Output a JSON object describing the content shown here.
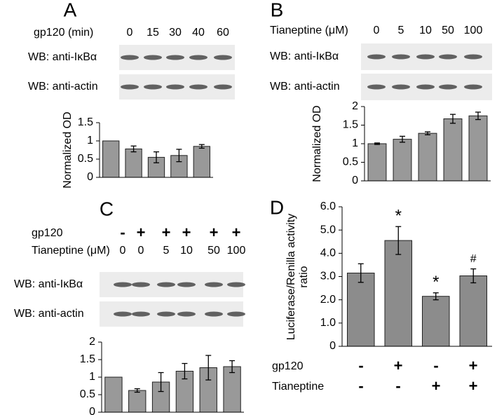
{
  "chart_data": [
    {
      "type": "bar",
      "panel": "A",
      "ylabel": "Normalized OD",
      "condition_rows": [
        {
          "label": "gp120 (min)",
          "values": [
            0,
            15,
            30,
            40,
            60
          ]
        }
      ],
      "blots": [
        "WB: anti-IκBα",
        "WB: anti-actin"
      ],
      "values": [
        1.0,
        0.78,
        0.55,
        0.6,
        0.85
      ],
      "errors": [
        0,
        0.08,
        0.15,
        0.17,
        0.05
      ],
      "color": "#999999",
      "ylim": [
        0,
        1.5
      ],
      "yticks": [
        0,
        0.5,
        1,
        1.5
      ]
    },
    {
      "type": "bar",
      "panel": "B",
      "ylabel": "Normalized OD",
      "condition_rows": [
        {
          "label": "Tianeptine (μM)",
          "values": [
            0,
            5,
            10,
            50,
            100
          ]
        }
      ],
      "blots": [
        "WB: anti-IκBα",
        "WB: anti-actin"
      ],
      "values": [
        1.0,
        1.12,
        1.28,
        1.67,
        1.75
      ],
      "errors": [
        0.02,
        0.08,
        0.04,
        0.12,
        0.1
      ],
      "color": "#999999",
      "ylim": [
        0,
        2
      ],
      "yticks": [
        0,
        0.5,
        1,
        1.5,
        2
      ]
    },
    {
      "type": "bar",
      "panel": "C",
      "condition_rows": [
        {
          "label": "gp120",
          "values": [
            "-",
            "+",
            "+",
            "+",
            "+",
            "+"
          ]
        },
        {
          "label": "Tianeptine (μM)",
          "values": [
            0,
            0,
            5,
            10,
            50,
            100
          ]
        }
      ],
      "blots": [
        "WB: anti-IκBα",
        "WB: anti-actin"
      ],
      "values": [
        1.0,
        0.62,
        0.86,
        1.17,
        1.27,
        1.3
      ],
      "errors": [
        0,
        0.05,
        0.27,
        0.22,
        0.35,
        0.17
      ],
      "color": "#999999",
      "ylim": [
        0,
        2
      ],
      "yticks": [
        0,
        0.5,
        1,
        1.5,
        2
      ]
    },
    {
      "type": "bar",
      "panel": "D",
      "ylabel": "Luciferase/Renilla activity ratio",
      "condition_rows": [
        {
          "label": "gp120",
          "values": [
            "-",
            "+",
            "-",
            "+"
          ]
        },
        {
          "label": "Tianeptine",
          "values": [
            "-",
            "-",
            "+",
            "+"
          ]
        }
      ],
      "values": [
        3.15,
        4.55,
        2.15,
        3.03
      ],
      "errors": [
        0.4,
        0.6,
        0.15,
        0.3
      ],
      "bar_labels": [
        null,
        "*",
        "*",
        "#"
      ],
      "color": "#8c8c8c",
      "ylim": [
        0,
        6
      ],
      "yticks": [
        0,
        {
          "value": 1,
          "label": "1.0"
        },
        {
          "value": 2,
          "label": "2.0"
        },
        {
          "value": 3,
          "label": "3.0"
        },
        {
          "value": 4,
          "label": "4.0"
        },
        {
          "value": 5,
          "label": "5.0"
        },
        {
          "value": 6,
          "label": "6.0"
        }
      ]
    }
  ]
}
